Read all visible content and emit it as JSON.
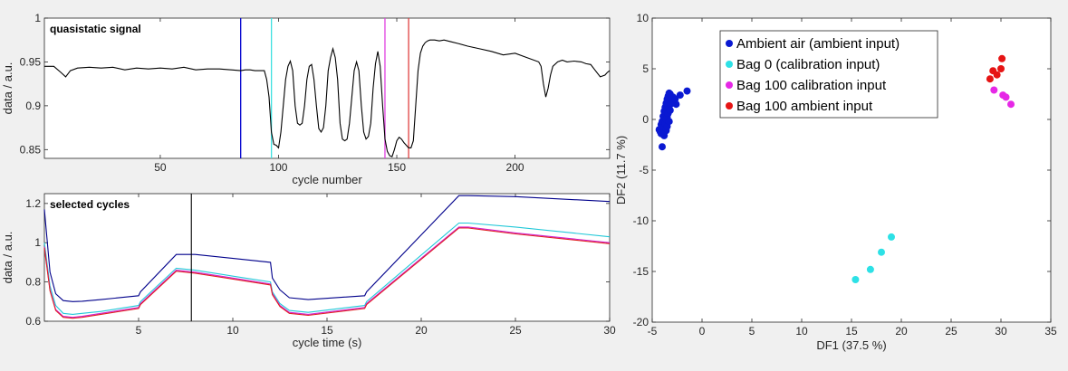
{
  "chart_data": [
    {
      "type": "line",
      "title": "quasistatic signal",
      "xlabel": "cycle number",
      "ylabel": "data / a.u.",
      "xlim": [
        1,
        240
      ],
      "ylim": [
        0.84,
        1.0
      ],
      "xticks": [
        50,
        100,
        150,
        200
      ],
      "xtick_labels": [
        "50",
        "100",
        "150",
        "200"
      ],
      "yticks": [
        0.85,
        0.9,
        0.95,
        1.0
      ],
      "ytick_labels": [
        "0.85",
        "0.9",
        "0.95",
        "1"
      ],
      "series": [
        {
          "color": "#000000",
          "x": [
            1,
            5,
            8,
            10,
            12,
            15,
            20,
            25,
            30,
            35,
            40,
            45,
            50,
            55,
            60,
            65,
            70,
            75,
            80,
            84,
            86,
            88,
            90,
            92,
            94,
            95,
            96,
            97,
            98,
            99,
            100,
            101,
            102,
            103,
            104,
            105,
            106,
            107,
            108,
            109,
            110,
            111,
            112,
            113,
            114,
            115,
            116,
            117,
            118,
            119,
            120,
            121,
            122,
            123,
            124,
            125,
            126,
            127,
            128,
            129,
            130,
            131,
            132,
            133,
            134,
            135,
            136,
            137,
            138,
            139,
            140,
            141,
            142,
            143,
            144,
            145,
            146,
            147,
            148,
            149,
            150,
            151,
            152,
            153,
            154,
            155,
            156,
            157,
            158,
            159,
            160,
            161,
            162,
            163,
            164,
            165,
            166,
            168,
            170,
            173,
            176,
            180,
            185,
            190,
            195,
            200,
            205,
            210,
            211,
            212,
            213,
            214,
            215,
            216,
            218,
            220,
            222,
            225,
            228,
            230,
            232,
            234,
            236,
            238,
            239,
            240
          ],
          "y": [
            0.945,
            0.945,
            0.938,
            0.933,
            0.94,
            0.943,
            0.944,
            0.943,
            0.944,
            0.941,
            0.943,
            0.942,
            0.943,
            0.942,
            0.944,
            0.941,
            0.942,
            0.942,
            0.941,
            0.94,
            0.941,
            0.941,
            0.94,
            0.94,
            0.94,
            0.93,
            0.91,
            0.87,
            0.856,
            0.855,
            0.852,
            0.87,
            0.9,
            0.93,
            0.945,
            0.951,
            0.94,
            0.9,
            0.88,
            0.878,
            0.88,
            0.9,
            0.93,
            0.945,
            0.947,
            0.93,
            0.9,
            0.874,
            0.87,
            0.875,
            0.9,
            0.94,
            0.955,
            0.965,
            0.955,
            0.93,
            0.88,
            0.862,
            0.86,
            0.862,
            0.88,
            0.91,
            0.94,
            0.95,
            0.94,
            0.9,
            0.87,
            0.862,
            0.865,
            0.88,
            0.92,
            0.948,
            0.962,
            0.945,
            0.9,
            0.862,
            0.848,
            0.843,
            0.842,
            0.85,
            0.86,
            0.864,
            0.862,
            0.858,
            0.855,
            0.852,
            0.852,
            0.86,
            0.9,
            0.94,
            0.96,
            0.968,
            0.972,
            0.974,
            0.975,
            0.975,
            0.975,
            0.974,
            0.975,
            0.973,
            0.971,
            0.968,
            0.965,
            0.962,
            0.958,
            0.96,
            0.955,
            0.95,
            0.945,
            0.925,
            0.91,
            0.92,
            0.935,
            0.945,
            0.95,
            0.952,
            0.95,
            0.951,
            0.95,
            0.948,
            0.947,
            0.94,
            0.933,
            0.935,
            0.938,
            0.94
          ]
        }
      ],
      "markers": [
        {
          "x": 84,
          "color": "#0000cd"
        },
        {
          "x": 97,
          "color": "#3ee0e0"
        },
        {
          "x": 145,
          "color": "#e040e0"
        },
        {
          "x": 155,
          "color": "#e04040"
        }
      ]
    },
    {
      "type": "line",
      "title": "selected cycles",
      "xlabel": "cycle time (s)",
      "ylabel": "data / a.u.",
      "xlim": [
        0,
        30
      ],
      "ylim": [
        0.6,
        1.25
      ],
      "xticks": [
        5,
        10,
        15,
        20,
        25,
        30
      ],
      "xtick_labels": [
        "5",
        "10",
        "15",
        "20",
        "25",
        "30"
      ],
      "yticks": [
        0.6,
        0.8,
        1.0,
        1.2
      ],
      "ytick_labels": [
        "0.6",
        "0.8",
        "1",
        "1.2"
      ],
      "vline": {
        "x": 7.8,
        "color": "#000000"
      },
      "series": [
        {
          "color": "#00008b",
          "x": [
            0,
            0.3,
            0.6,
            1,
            1.5,
            2,
            3,
            5,
            5.1,
            7,
            8,
            12,
            12.1,
            12.5,
            13,
            14,
            17,
            17.1,
            22,
            22.5,
            25,
            30
          ],
          "y": [
            1.17,
            0.85,
            0.74,
            0.705,
            0.7,
            0.702,
            0.71,
            0.73,
            0.75,
            0.94,
            0.94,
            0.9,
            0.82,
            0.76,
            0.72,
            0.71,
            0.73,
            0.75,
            1.24,
            1.24,
            1.235,
            1.21
          ]
        },
        {
          "color": "#20c8d8",
          "x": [
            0,
            0.3,
            0.6,
            1,
            1.5,
            2,
            3,
            5,
            5.1,
            7,
            8,
            12,
            12.1,
            12.5,
            13,
            14,
            17,
            17.1,
            22,
            22.5,
            25,
            30
          ],
          "y": [
            1.0,
            0.78,
            0.68,
            0.64,
            0.635,
            0.64,
            0.65,
            0.68,
            0.7,
            0.87,
            0.86,
            0.8,
            0.75,
            0.69,
            0.655,
            0.645,
            0.68,
            0.7,
            1.1,
            1.1,
            1.08,
            1.03
          ]
        },
        {
          "color": "#d020d0",
          "x": [
            0,
            0.3,
            0.6,
            1,
            1.5,
            2,
            3,
            5,
            5.1,
            7,
            8,
            12,
            12.1,
            12.5,
            13,
            14,
            17,
            17.1,
            22,
            22.5,
            25,
            30
          ],
          "y": [
            0.98,
            0.76,
            0.66,
            0.625,
            0.62,
            0.625,
            0.64,
            0.67,
            0.69,
            0.86,
            0.85,
            0.79,
            0.74,
            0.68,
            0.645,
            0.635,
            0.67,
            0.69,
            1.08,
            1.08,
            1.05,
            1.0
          ]
        },
        {
          "color": "#e02020",
          "x": [
            0,
            0.3,
            0.6,
            1,
            1.5,
            2,
            3,
            5,
            5.1,
            7,
            8,
            12,
            12.1,
            12.5,
            13,
            14,
            17,
            17.1,
            22,
            22.5,
            25,
            30
          ],
          "y": [
            0.975,
            0.755,
            0.655,
            0.62,
            0.615,
            0.62,
            0.635,
            0.665,
            0.685,
            0.855,
            0.845,
            0.785,
            0.735,
            0.675,
            0.64,
            0.63,
            0.665,
            0.685,
            1.075,
            1.075,
            1.045,
            0.995
          ]
        }
      ]
    },
    {
      "type": "scatter",
      "xlabel": "DF1 (37.5 %)",
      "ylabel": "DF2 (11.7 %)",
      "xlim": [
        -5,
        35
      ],
      "ylim": [
        -20,
        10
      ],
      "grid": false,
      "legend_position": "top-right",
      "xticks": [
        -5,
        0,
        5,
        10,
        15,
        20,
        25,
        30,
        35
      ],
      "xtick_labels": [
        "-5",
        "0",
        "5",
        "10",
        "15",
        "20",
        "25",
        "30",
        "35"
      ],
      "yticks": [
        -20,
        -15,
        -10,
        -5,
        0,
        5,
        10
      ],
      "ytick_labels": [
        "-20",
        "-15",
        "-10",
        "-5",
        "0",
        "5",
        "10"
      ],
      "series": [
        {
          "name": "Ambient air (ambient input)",
          "color": "#0a19d2",
          "points": [
            [
              -4.2,
              -1.2
            ],
            [
              -4.3,
              -1.0
            ],
            [
              -4.1,
              -0.5
            ],
            [
              -4.0,
              -0.2
            ],
            [
              -3.9,
              0.3
            ],
            [
              -3.8,
              0.8
            ],
            [
              -3.7,
              1.2
            ],
            [
              -3.6,
              1.6
            ],
            [
              -3.5,
              2.0
            ],
            [
              -3.4,
              2.3
            ],
            [
              -3.3,
              2.6
            ],
            [
              -3.2,
              2.5
            ],
            [
              -3.9,
              -0.8
            ],
            [
              -3.7,
              -0.4
            ],
            [
              -3.5,
              0.2
            ],
            [
              -3.6,
              -1.1
            ],
            [
              -3.4,
              0.6
            ],
            [
              -3.3,
              1.1
            ],
            [
              -3.2,
              1.5
            ],
            [
              -3.1,
              2.0
            ],
            [
              -2.8,
              1.8
            ],
            [
              -2.9,
              2.2
            ],
            [
              -2.6,
              1.5
            ],
            [
              -2.2,
              2.4
            ],
            [
              -1.5,
              2.8
            ],
            [
              -4.0,
              -2.7
            ],
            [
              -3.8,
              -1.6
            ],
            [
              -3.5,
              -0.7
            ],
            [
              -3.2,
              0.9
            ],
            [
              -3.6,
              0.0
            ],
            [
              -4.1,
              -1.4
            ],
            [
              -3.0,
              1.6
            ],
            [
              -2.7,
              2.0
            ],
            [
              -3.3,
              -0.2
            ]
          ]
        },
        {
          "name": "Bag 0 (calibration input)",
          "color": "#2de1e6",
          "points": [
            [
              15.4,
              -15.8
            ],
            [
              16.9,
              -14.8
            ],
            [
              18.0,
              -13.1
            ],
            [
              19.0,
              -11.6
            ]
          ]
        },
        {
          "name": "Bag 100 calibration input",
          "color": "#e628e6",
          "points": [
            [
              29.3,
              2.9
            ],
            [
              30.2,
              2.4
            ],
            [
              30.5,
              2.2
            ],
            [
              31.0,
              1.5
            ]
          ]
        },
        {
          "name": "Bag 100 ambient input",
          "color": "#e61414",
          "points": [
            [
              28.9,
              4.0
            ],
            [
              29.2,
              4.8
            ],
            [
              29.6,
              4.4
            ],
            [
              30.0,
              5.0
            ],
            [
              30.1,
              6.0
            ]
          ]
        }
      ]
    }
  ]
}
